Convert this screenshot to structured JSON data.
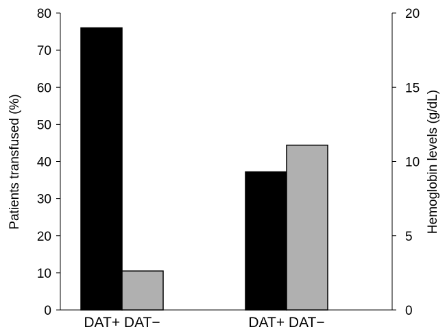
{
  "chart_data": {
    "type": "bar",
    "categories": [
      "DAT+",
      "DAT−",
      "DAT+",
      "DAT−"
    ],
    "groups": [
      {
        "axis": "left",
        "bars": [
          {
            "category": "DAT+",
            "value": 76,
            "color": "#000000"
          },
          {
            "category": "DAT−",
            "value": 10.5,
            "color": "#b0b0b0"
          }
        ]
      },
      {
        "axis": "right",
        "bars": [
          {
            "category": "DAT+",
            "value": 9.3,
            "color": "#000000"
          },
          {
            "category": "DAT−",
            "value": 11.1,
            "color": "#b0b0b0"
          }
        ]
      }
    ],
    "ylabel_left": "Patients transfused (%)",
    "ylim_left": [
      0,
      80
    ],
    "yticks_left": [
      0,
      10,
      20,
      30,
      40,
      50,
      60,
      70,
      80
    ],
    "ylabel_right": "Hemoglobin levels (g/dL)",
    "ylim_right": [
      0,
      20
    ],
    "yticks_right": [
      0,
      5,
      10,
      15,
      20
    ],
    "grid": false,
    "legend": "none"
  }
}
